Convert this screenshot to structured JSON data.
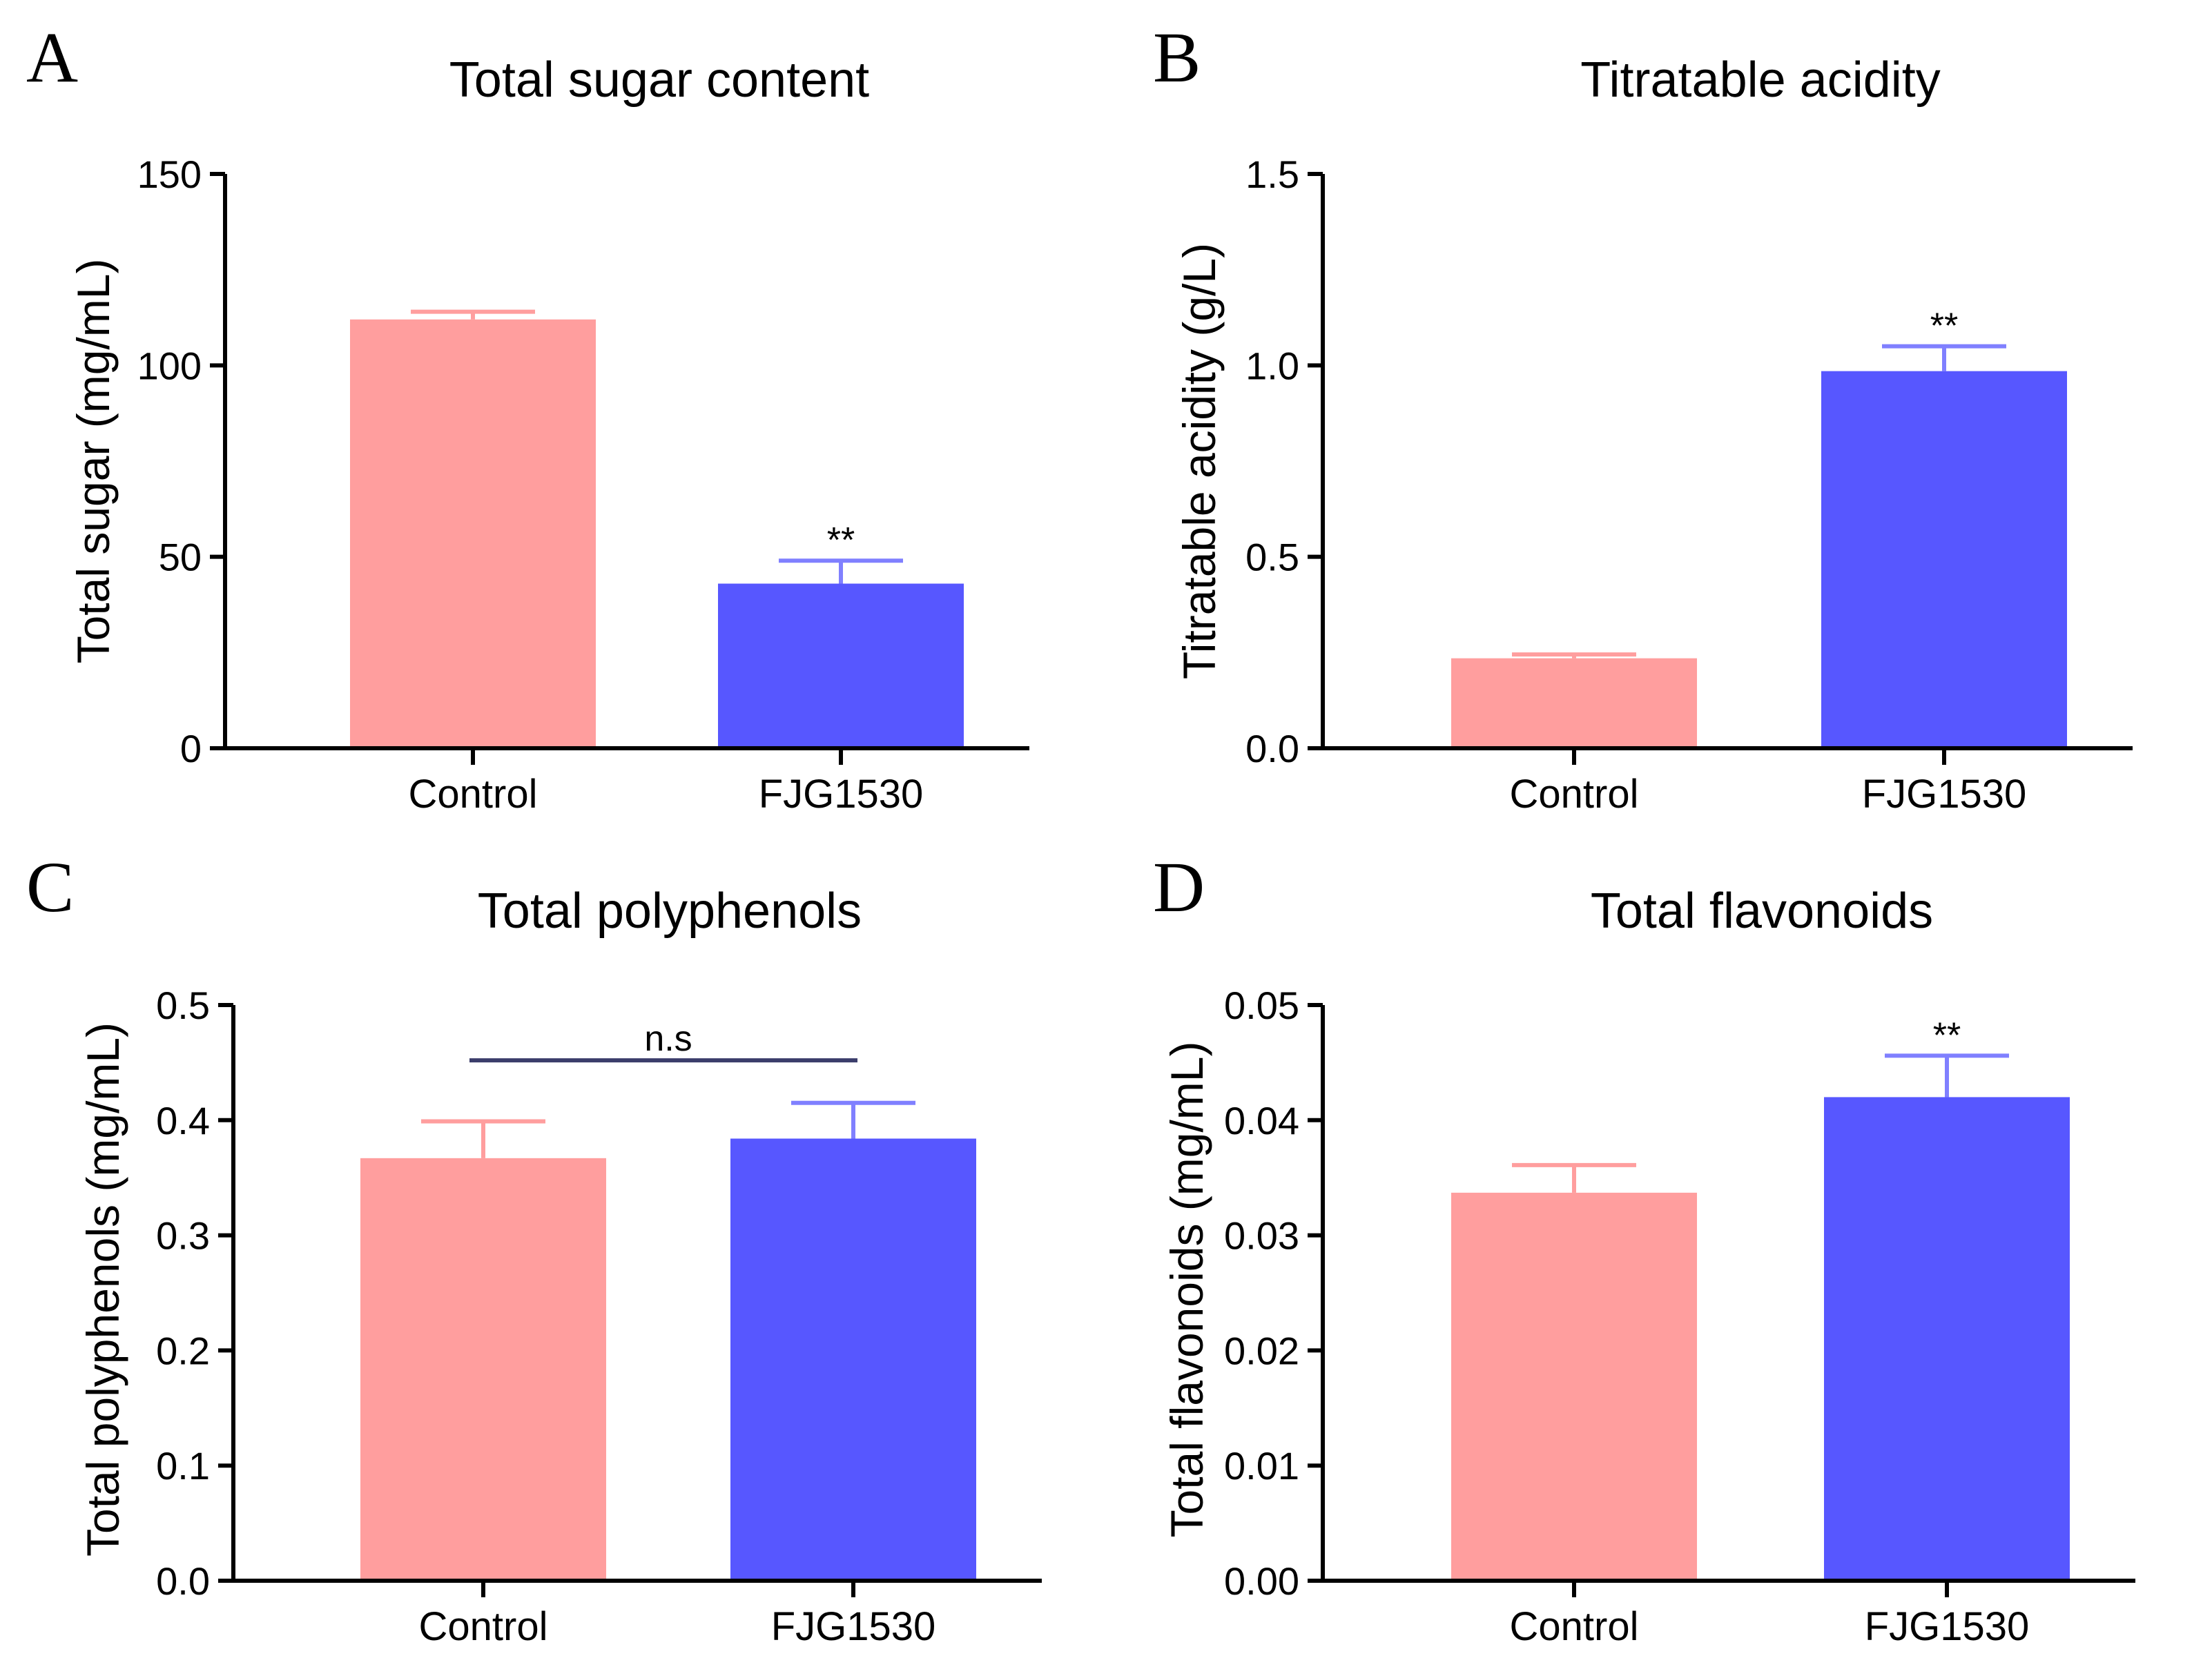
{
  "colors": {
    "control": "#ff9e9e",
    "treatment": "#5757ff",
    "control_err": "#ff9e9e",
    "treatment_err": "#8080ff",
    "axis": "#000000",
    "bracket": "#3b3d6b"
  },
  "chart_data": [
    {
      "type": "bar",
      "panel": "A",
      "title": "Total sugar content",
      "ylabel": "Total sugar (mg/mL)",
      "xlabel": "",
      "ylim": [
        0,
        150
      ],
      "yticks": [
        0,
        50,
        100,
        150
      ],
      "ytick_labels": [
        "0",
        "50",
        "100",
        "150"
      ],
      "categories": [
        "Control",
        "FJG1530"
      ],
      "values": [
        112,
        43
      ],
      "errors": [
        2,
        6
      ],
      "significance": [
        "",
        "**"
      ],
      "bracket": null
    },
    {
      "type": "bar",
      "panel": "B",
      "title": "Titratable acidity",
      "ylabel": "Titratable acidity (g/L)",
      "xlabel": "",
      "ylim": [
        0,
        1.5
      ],
      "yticks": [
        0,
        0.5,
        1.0,
        1.5
      ],
      "ytick_labels": [
        "0.0",
        "0.5",
        "1.0",
        "1.5"
      ],
      "categories": [
        "Control",
        "FJG1530"
      ],
      "values": [
        0.235,
        0.985
      ],
      "errors": [
        0.01,
        0.065
      ],
      "significance": [
        "",
        "**"
      ],
      "bracket": null
    },
    {
      "type": "bar",
      "panel": "C",
      "title": "Total polyphenols",
      "ylabel": "Total polyphenols (mg/mL)",
      "xlabel": "",
      "ylim": [
        0,
        0.5
      ],
      "yticks": [
        0,
        0.1,
        0.2,
        0.3,
        0.4,
        0.5
      ],
      "ytick_labels": [
        "0.0",
        "0.1",
        "0.2",
        "0.3",
        "0.4",
        "0.5"
      ],
      "categories": [
        "Control",
        "FJG1530"
      ],
      "values": [
        0.367,
        0.384
      ],
      "errors": [
        0.032,
        0.031
      ],
      "significance": [
        "",
        ""
      ],
      "bracket": {
        "label": "n.s",
        "value": 0.452
      }
    },
    {
      "type": "bar",
      "panel": "D",
      "title": "Total flavonoids",
      "ylabel": "Total flavonoids (mg/mL)",
      "xlabel": "",
      "ylim": [
        0,
        0.05
      ],
      "yticks": [
        0,
        0.01,
        0.02,
        0.03,
        0.04,
        0.05
      ],
      "ytick_labels": [
        "0.00",
        "0.01",
        "0.02",
        "0.03",
        "0.04",
        "0.05"
      ],
      "categories": [
        "Control",
        "FJG1530"
      ],
      "values": [
        0.0337,
        0.042
      ],
      "errors": [
        0.0024,
        0.0036
      ],
      "significance": [
        "",
        "**"
      ],
      "bracket": null
    }
  ]
}
